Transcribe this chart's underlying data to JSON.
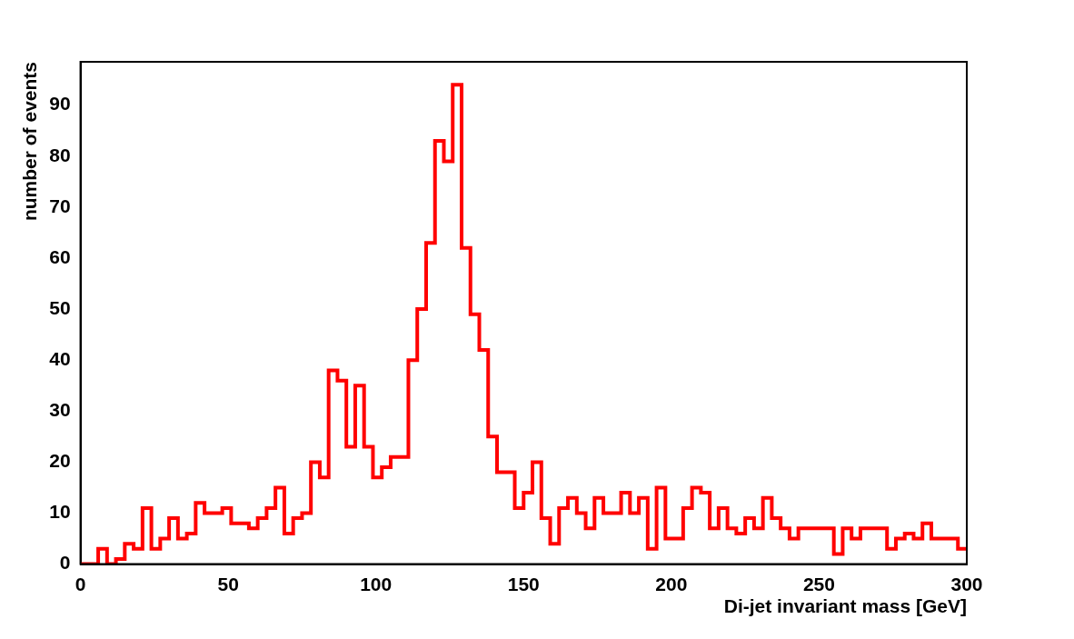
{
  "chart_data": {
    "type": "histogram",
    "xlabel": "Di-jet invariant mass [GeV]",
    "ylabel": "number of events",
    "bins": [
      0,
      3,
      6,
      9,
      12,
      15,
      18,
      21,
      24,
      27,
      30,
      33,
      36,
      39,
      42,
      45,
      48,
      51,
      54,
      57,
      60,
      63,
      66,
      69,
      72,
      75,
      78,
      81,
      84,
      87,
      90,
      93,
      96,
      99,
      102,
      105,
      108,
      111,
      114,
      117,
      120,
      123,
      126,
      129,
      132,
      135,
      138,
      141,
      144,
      147,
      150,
      153,
      156,
      159,
      162,
      165,
      168,
      171,
      174,
      177,
      180,
      183,
      186,
      189,
      192,
      195,
      198,
      201,
      204,
      207,
      210,
      213,
      216,
      219,
      222,
      225,
      228,
      231,
      234,
      237,
      240,
      243,
      246,
      249,
      252,
      255,
      258,
      261,
      264,
      267,
      270,
      273,
      276,
      279,
      282,
      285,
      288,
      291,
      294,
      297,
      300
    ],
    "values": [
      0,
      0,
      3,
      0,
      1,
      4,
      3,
      11,
      3,
      5,
      9,
      5,
      6,
      12,
      10,
      10,
      11,
      8,
      8,
      7,
      9,
      11,
      15,
      6,
      9,
      10,
      20,
      17,
      38,
      36,
      23,
      35,
      23,
      17,
      19,
      21,
      21,
      40,
      50,
      63,
      83,
      79,
      94,
      62,
      49,
      42,
      25,
      18,
      18,
      11,
      14,
      20,
      9,
      4,
      11,
      13,
      10,
      7,
      13,
      10,
      10,
      14,
      10,
      13,
      3,
      15,
      5,
      5,
      11,
      15,
      14,
      7,
      11,
      7,
      6,
      9,
      7,
      13,
      9,
      7,
      5,
      7,
      7,
      7,
      7,
      2,
      7,
      5,
      7,
      7,
      7,
      3,
      5,
      6,
      5,
      8,
      5,
      5,
      5,
      3
    ],
    "color": "#ff0000",
    "xlim": [
      0,
      300
    ],
    "xticks": [
      0,
      50,
      100,
      150,
      200,
      250,
      300
    ],
    "ylim": [
      0,
      98.5
    ],
    "yticks": [
      0,
      10,
      20,
      30,
      40,
      50,
      60,
      70,
      80,
      90
    ],
    "grid": false,
    "legend": false
  }
}
